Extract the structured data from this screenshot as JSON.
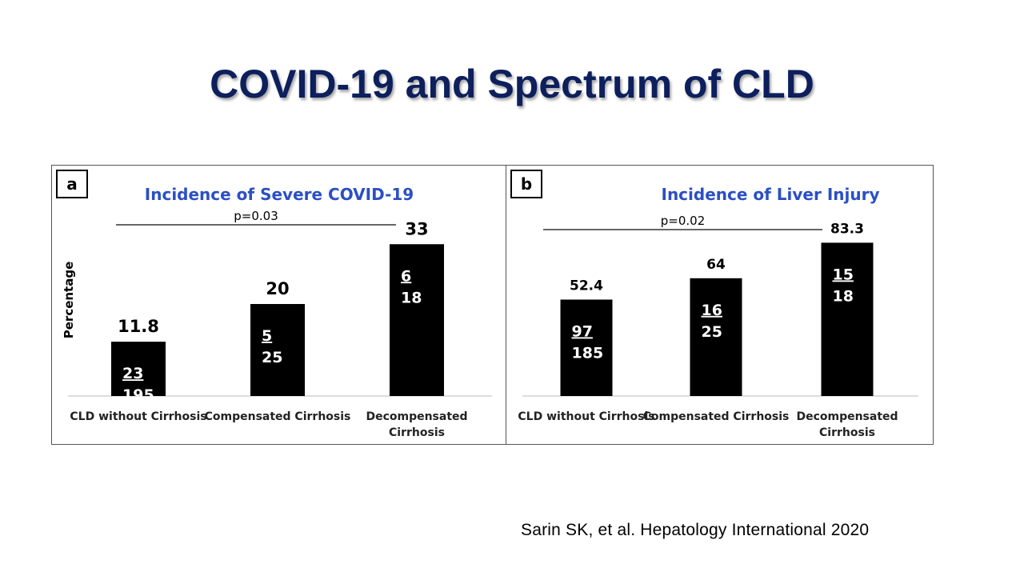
{
  "slide": {
    "title": "COVID-19 and Spectrum of CLD",
    "citation": "Sarin SK, et al. Hepatology International 2020"
  },
  "chart_data": [
    {
      "type": "bar",
      "panel_label": "a",
      "title": "Incidence of Severe COVID-19",
      "ylabel": "Percentage",
      "xlabel": "",
      "categories": [
        "CLD without Cirrhosis",
        "Compensated Cirrhosis",
        "Decompensated Cirrhosis"
      ],
      "values": [
        11.8,
        20,
        33
      ],
      "value_labels": [
        "11.8",
        "20",
        "33"
      ],
      "numerators": [
        "23",
        "5",
        "6"
      ],
      "denominators": [
        "195",
        "25",
        "18"
      ],
      "p_value": "p=0.03",
      "ylim": [
        0,
        40
      ],
      "bar_color": "#000000",
      "title_color": "#2b4fc4"
    },
    {
      "type": "bar",
      "panel_label": "b",
      "title": "Incidence of Liver Injury",
      "ylabel": "",
      "xlabel": "",
      "categories": [
        "CLD without Cirrhosis",
        "Compensated Cirrhosis",
        "Decompensated Cirrhosis"
      ],
      "values": [
        52.4,
        64,
        83.3
      ],
      "value_labels": [
        "52.4",
        "64",
        "83.3"
      ],
      "numerators": [
        "97",
        "16",
        "15"
      ],
      "denominators": [
        "185",
        "25",
        "18"
      ],
      "p_value": "p=0.02",
      "ylim": [
        0,
        100
      ],
      "bar_color": "#000000",
      "title_color": "#2b4fc4"
    }
  ]
}
